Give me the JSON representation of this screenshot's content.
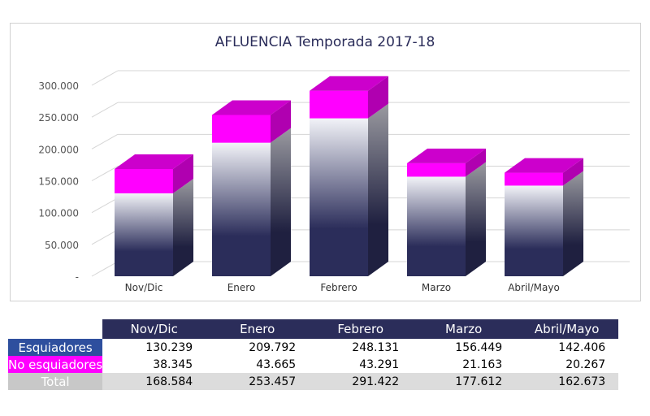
{
  "chart_data": {
    "type": "bar",
    "stacked": true,
    "title": "AFLUENCIA Temporada 2017-18",
    "categories": [
      "Nov/Dic",
      "Enero",
      "Febrero",
      "Marzo",
      "Abril/Mayo"
    ],
    "series": [
      {
        "name": "Esquiadores",
        "values": [
          130239,
          209792,
          248131,
          156449,
          142406
        ],
        "color": "#2b2d5a"
      },
      {
        "name": "No esquiadores",
        "values": [
          38345,
          43665,
          43291,
          21163,
          20267
        ],
        "color": "#ff00ff"
      }
    ],
    "totals": [
      168584,
      253457,
      291422,
      177612,
      162673
    ],
    "yticks": [
      "-",
      "50.000",
      "100.000",
      "150.000",
      "200.000",
      "250.000",
      "300.000"
    ],
    "ylim": [
      0,
      300000
    ],
    "grid": true
  },
  "table": {
    "headers": [
      "Nov/Dic",
      "Enero",
      "Febrero",
      "Marzo",
      "Abril/Mayo"
    ],
    "rows": [
      {
        "label": "Esquiadores",
        "values": [
          "130.239",
          "209.792",
          "248.131",
          "156.449",
          "142.406"
        ]
      },
      {
        "label": "No esquiadores",
        "values": [
          "38.345",
          "43.665",
          "43.291",
          "21.163",
          "20.267"
        ]
      },
      {
        "label": "Total",
        "values": [
          "168.584",
          "253.457",
          "291.422",
          "177.612",
          "162.673"
        ]
      }
    ]
  }
}
